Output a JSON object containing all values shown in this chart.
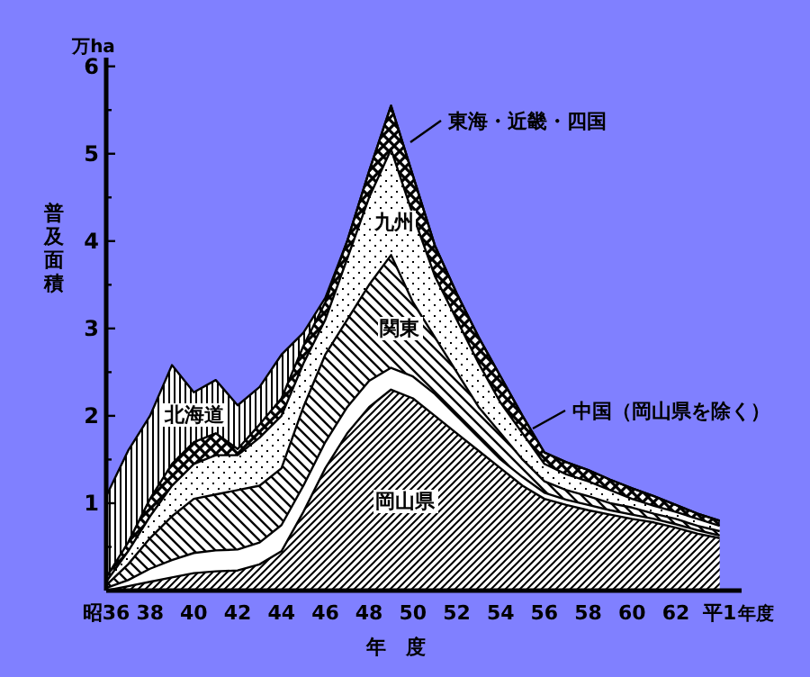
{
  "chart_data": {
    "type": "area",
    "stacked": true,
    "ylabel": "普及面積",
    "xlabel": "年　度",
    "annotations": [
      "万ha",
      "年度"
    ],
    "x": [
      36,
      37,
      38,
      39,
      40,
      41,
      42,
      43,
      44,
      45,
      46,
      47,
      48,
      49,
      50,
      51,
      52,
      53,
      54,
      55,
      56,
      57,
      58,
      59,
      60,
      61,
      62,
      63,
      64
    ],
    "series": [
      {
        "name": "岡山県",
        "color": "#000000",
        "values": [
          0,
          0.05,
          0.1,
          0.15,
          0.2,
          0.22,
          0.23,
          0.3,
          0.45,
          0.9,
          1.4,
          1.8,
          2.1,
          2.3,
          2.2,
          2.0,
          1.8,
          1.6,
          1.4,
          1.2,
          1.05,
          0.98,
          0.92,
          0.87,
          0.82,
          0.78,
          0.72,
          0.65,
          0.6
        ]
      },
      {
        "name": "中国（岡山県を除く）",
        "color": "#ffffff",
        "values": [
          0.03,
          0.07,
          0.15,
          0.2,
          0.23,
          0.24,
          0.24,
          0.25,
          0.3,
          0.3,
          0.3,
          0.3,
          0.3,
          0.25,
          0.25,
          0.25,
          0.2,
          0.15,
          0.1,
          0.1,
          0.07,
          0.06,
          0.06,
          0.05,
          0.05,
          0.04,
          0.04,
          0.04,
          0.03
        ]
      },
      {
        "name": "関東",
        "color": "#000000",
        "values": [
          0.03,
          0.18,
          0.35,
          0.5,
          0.62,
          0.64,
          0.68,
          0.65,
          0.65,
          0.9,
          1.0,
          1.0,
          1.1,
          1.29,
          0.85,
          0.65,
          0.5,
          0.35,
          0.3,
          0.2,
          0.13,
          0.11,
          0.1,
          0.08,
          0.08,
          0.06,
          0.06,
          0.05,
          0.05
        ]
      },
      {
        "name": "九州",
        "color": "#000000",
        "values": [
          0.04,
          0.15,
          0.25,
          0.35,
          0.4,
          0.45,
          0.4,
          0.55,
          0.6,
          0.5,
          0.4,
          0.7,
          1.0,
          1.21,
          1.0,
          0.7,
          0.6,
          0.5,
          0.35,
          0.3,
          0.2,
          0.18,
          0.17,
          0.15,
          0.1,
          0.09,
          0.08,
          0.08,
          0.06
        ]
      },
      {
        "name": "東海・近畿・四国",
        "color": "#000000",
        "values": [
          0.05,
          0.1,
          0.2,
          0.25,
          0.25,
          0.25,
          0.07,
          0.15,
          0.2,
          0.2,
          0.2,
          0.2,
          0.3,
          0.5,
          0.45,
          0.35,
          0.3,
          0.3,
          0.3,
          0.2,
          0.13,
          0.14,
          0.13,
          0.12,
          0.12,
          0.11,
          0.08,
          0.06,
          0.06
        ]
      },
      {
        "name": "北海道",
        "color": "#000000",
        "values": [
          0.93,
          1.05,
          0.95,
          1.13,
          0.57,
          0.61,
          0.5,
          0.43,
          0.5,
          0.15,
          0.05,
          0,
          0,
          0,
          0,
          0,
          0,
          0,
          0,
          0,
          0,
          0,
          0,
          0,
          0,
          0,
          0,
          0,
          0
        ]
      }
    ],
    "xlim": [
      36,
      65
    ],
    "xticks": [
      {
        "value": 36,
        "label": "昭36"
      },
      38,
      40,
      42,
      44,
      46,
      48,
      50,
      52,
      54,
      56,
      58,
      60,
      62,
      {
        "value": 64,
        "label": "平1"
      }
    ],
    "legend": "top right",
    "ylim": [
      0,
      6.1
    ],
    "yticks": [
      {
        "value": 0,
        "label": null
      },
      {
        "value": 0.5,
        "label": null
      },
      1,
      {
        "value": 1.5,
        "label": null
      },
      2,
      {
        "value": 2.5,
        "label": null
      },
      3,
      {
        "value": 3.5,
        "label": null
      },
      4,
      {
        "value": 4.5,
        "label": null
      },
      5,
      {
        "value": 5.5,
        "label": null
      },
      6
    ]
  }
}
